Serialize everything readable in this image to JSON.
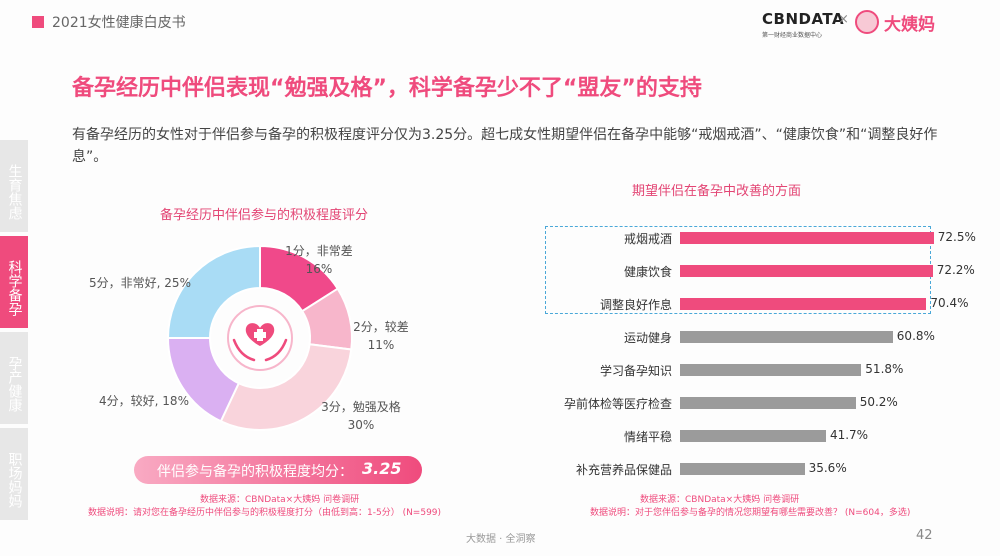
{
  "header": {
    "title": "2021女性健康白皮书",
    "logo_cbn": "CBNDATA",
    "logo_cbn_sub": "第一财经商业数据中心",
    "logo_x": "×",
    "logo_dym": "大姨妈"
  },
  "main_title": "备孕经历中伴侣表现“勉强及格”，科学备孕少不了“盟友”的支持",
  "subtitle": "有备孕经历的女性对于伴侣参与备孕的积极程度评分仅为3.25分。超七成女性期望伴侣在备孕中能够“戒烟戒酒”、“健康饮食”和“调整良好作息”。",
  "sidenav": [
    {
      "label": "生育焦虑",
      "active": false
    },
    {
      "label": "科学备孕",
      "active": true
    },
    {
      "label": "孕产健康",
      "active": false
    },
    {
      "label": "职场妈妈",
      "active": false
    }
  ],
  "colors": {
    "accent": "#ef4b7d",
    "bar_highlight": "#ef4b7d",
    "bar_normal": "#9b9b9b"
  },
  "chart_data": [
    {
      "type": "pie",
      "title": "备孕经历中伴侣参与的积极程度评分",
      "categories": [
        "1分，非常差",
        "2分，较差",
        "3分，勉强及格",
        "4分，较好",
        "5分，非常好"
      ],
      "values": [
        16,
        11,
        30,
        18,
        25
      ],
      "value_labels": [
        "16%",
        "11%",
        "30%",
        "18%",
        "25%"
      ],
      "colors": [
        "#f0498a",
        "#f7b6cb",
        "#f9d4dc",
        "#dab0f2",
        "#a9dcf5"
      ],
      "center_icon": "heart-hands-icon",
      "average_label": "伴侣参与备孕的积极程度均分：",
      "average_value": "3.25",
      "source_note": "数据来源：CBNData×大姨妈 问卷调研",
      "explain_note": "数据说明：请对您在备孕经历中伴侣参与的积极程度打分（由低到高：1-5分）   (N=599)"
    },
    {
      "type": "bar",
      "orientation": "horizontal",
      "title": "期望伴侣在备孕中改善的方面",
      "categories": [
        "戒烟戒酒",
        "健康饮食",
        "调整良好作息",
        "运动健身",
        "学习备孕知识",
        "孕前体检等医疗检查",
        "情绪平稳",
        "补充营养品保健品"
      ],
      "values": [
        72.5,
        72.2,
        70.4,
        60.8,
        51.8,
        50.2,
        41.7,
        35.6
      ],
      "value_labels": [
        "72.5%",
        "72.2%",
        "70.4%",
        "60.8%",
        "51.8%",
        "50.2%",
        "41.7%",
        "35.6%"
      ],
      "highlighted": [
        true,
        true,
        true,
        false,
        false,
        false,
        false,
        false
      ],
      "xlim": [
        0,
        80
      ],
      "source_note": "数据来源：CBNData×大姨妈 问卷调研",
      "explain_note": "数据说明：对于您伴侣参与备孕的情况您期望有哪些需要改善？ (N=604，多选)"
    }
  ],
  "footer": {
    "center": "大数据 · 全洞察",
    "page": "42"
  }
}
